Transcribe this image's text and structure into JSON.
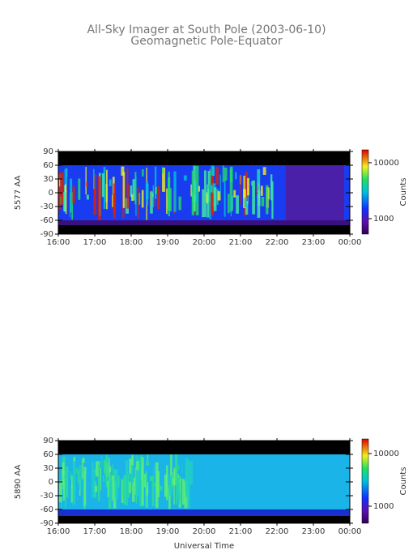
{
  "chart_data": [
    {
      "type": "keogram",
      "title": "All-Sky Imager at South Pole (2003-06-10)",
      "subtitle": "Geomagnetic Pole-Equator",
      "y_label": "5577 AA",
      "colorbar_label": "Counts",
      "xlim": [
        16,
        24
      ],
      "xticks": [
        {
          "value": 16,
          "label": "16:00"
        },
        {
          "value": 17,
          "label": "17:00"
        },
        {
          "value": 18,
          "label": "18:00"
        },
        {
          "value": 19,
          "label": "19:00"
        },
        {
          "value": 20,
          "label": "20:00"
        },
        {
          "value": 21,
          "label": "21:00"
        },
        {
          "value": 22,
          "label": "22:00"
        },
        {
          "value": 23,
          "label": "23:00"
        },
        {
          "value": 24,
          "label": "00:00"
        }
      ],
      "ylim": [
        -90,
        90
      ],
      "yticks": [
        -90,
        -60,
        -30,
        0,
        30,
        60,
        90
      ],
      "clim": [
        530,
        17000
      ],
      "cticks": [
        1000,
        10000
      ],
      "clog": true
    },
    {
      "type": "keogram",
      "y_label": "5890 AA",
      "x_label": "Universal Time",
      "colorbar_label": "Counts",
      "xlim": [
        16,
        24
      ],
      "xticks": [
        {
          "value": 16,
          "label": "16:00"
        },
        {
          "value": 17,
          "label": "17:00"
        },
        {
          "value": 18,
          "label": "18:00"
        },
        {
          "value": 19,
          "label": "19:00"
        },
        {
          "value": 20,
          "label": "20:00"
        },
        {
          "value": 21,
          "label": "21:00"
        },
        {
          "value": 22,
          "label": "22:00"
        },
        {
          "value": 23,
          "label": "23:00"
        },
        {
          "value": 24,
          "label": "00:00"
        }
      ],
      "ylim": [
        -90,
        90
      ],
      "yticks": [
        -90,
        -60,
        -30,
        0,
        30,
        60,
        90
      ],
      "clim": [
        475,
        18900
      ],
      "cticks": [
        1000,
        10000
      ],
      "clog": true
    }
  ]
}
